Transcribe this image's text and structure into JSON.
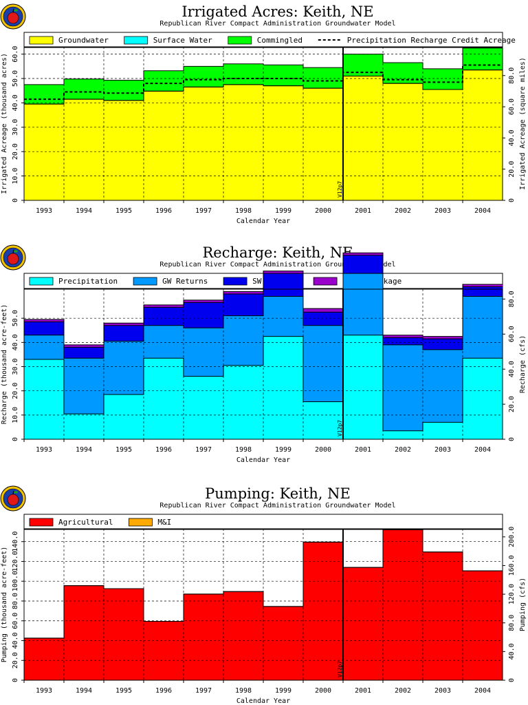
{
  "chart_data": [
    {
      "type": "area",
      "title": "Irrigated Acres: Keith, NE",
      "subtitle": "Republican River Compact Administration Groundwater Model",
      "xlabel": "Calendar Year",
      "ylabel": "Irrigated Acreage (thousand acres)",
      "ylabel_right": "Irrigated Acreage (square miles)",
      "categories": [
        "1993",
        "1994",
        "1995",
        "1996",
        "1997",
        "1998",
        "1999",
        "2000",
        "2001",
        "2002",
        "2003",
        "2004"
      ],
      "ylim": [
        0,
        63
      ],
      "yticks": [
        "0",
        "10.0",
        "20.0",
        "30.0",
        "40.0",
        "50.0",
        "60.0"
      ],
      "yticks_right": [
        "0",
        "20.0",
        "40.0",
        "60.0",
        "80.0"
      ],
      "yticks_right_values": [
        0,
        12.8,
        25.6,
        38.4,
        51.2
      ],
      "series": [
        {
          "name": "Groundwater",
          "color": "#ffff00",
          "values": [
            39.5,
            41.5,
            41.0,
            44.8,
            46.5,
            47.5,
            47.0,
            46.0,
            51.0,
            48.0,
            45.5,
            53.5
          ]
        },
        {
          "name": "Surface Water",
          "color": "#00ffff",
          "values": [
            0,
            0,
            0,
            0,
            0,
            0,
            0,
            0,
            0,
            0,
            0,
            0
          ]
        },
        {
          "name": "Commingled",
          "color": "#00ff00",
          "values": [
            8.0,
            8.3,
            8.3,
            8.4,
            8.5,
            8.5,
            8.6,
            8.5,
            9.0,
            8.5,
            8.5,
            9.0
          ]
        },
        {
          "name": "Precipitation Recharge Credit Acreage",
          "color": "#000000",
          "style": "dashed",
          "values": [
            41.5,
            44.5,
            44.0,
            48.0,
            49.5,
            50.0,
            50.0,
            49.0,
            52.5,
            49.5,
            48.5,
            55.5
          ]
        }
      ],
      "marker": {
        "label": "V12p7",
        "after": "2000"
      }
    },
    {
      "type": "area",
      "title": "Recharge: Keith, NE",
      "subtitle": "Republican River Compact Administration Groundwater Model",
      "xlabel": "Calendar Year",
      "ylabel": "Recharge (thousand acre-feet)",
      "ylabel_right": "Recharge (cfs)",
      "categories": [
        "1993",
        "1994",
        "1995",
        "1996",
        "1997",
        "1998",
        "1999",
        "2000",
        "2001",
        "2002",
        "2003",
        "2004"
      ],
      "ylim": [
        0,
        62
      ],
      "yticks": [
        "0",
        "10.0",
        "20.0",
        "30.0",
        "40.0",
        "50.0"
      ],
      "yticks_right": [
        "0",
        "20.0",
        "40.0",
        "60.0",
        "80.0"
      ],
      "yticks_right_values": [
        0,
        14.48,
        28.96,
        43.44,
        57.92
      ],
      "series": [
        {
          "name": "Precipitation",
          "color": "#00ffff",
          "values": [
            33.0,
            10.5,
            18.5,
            33.5,
            26.0,
            30.5,
            42.5,
            15.5,
            43.0,
            3.5,
            7.0,
            33.5
          ]
        },
        {
          "name": "GW Returns",
          "color": "#0099ff",
          "values": [
            10.0,
            23.0,
            22.0,
            13.5,
            20.0,
            20.5,
            16.5,
            31.5,
            25.5,
            35.5,
            30.0,
            25.5
          ]
        },
        {
          "name": "SW Returns",
          "color": "#0000ee",
          "values": [
            5.5,
            4.5,
            6.5,
            7.5,
            10.5,
            9.0,
            9.5,
            5.5,
            7.5,
            3.0,
            4.5,
            4.0
          ]
        },
        {
          "name": "Canal Leakage",
          "color": "#9900cc",
          "values": [
            1.0,
            1.0,
            1.0,
            1.0,
            1.0,
            1.0,
            1.0,
            1.5,
            1.0,
            1.0,
            1.0,
            1.0
          ]
        }
      ],
      "marker": {
        "label": "V12p7",
        "after": "2000"
      }
    },
    {
      "type": "area",
      "title": "Pumping: Keith, NE",
      "subtitle": "Republican River Compact Administration Groundwater Model",
      "xlabel": "Calendar Year",
      "ylabel": "Pumping (thousand acre-feet)",
      "ylabel_right": "Pumping (cfs)",
      "categories": [
        "1993",
        "1994",
        "1995",
        "1996",
        "1997",
        "1998",
        "1999",
        "2000",
        "2001",
        "2002",
        "2003",
        "2004"
      ],
      "ylim": [
        0,
        153
      ],
      "yticks": [
        "0",
        "20.0",
        "40.0",
        "60.0",
        "80.0",
        "100.0",
        "120.0",
        "140.0"
      ],
      "yticks_right": [
        "0",
        "40.0",
        "80.0",
        "120.0",
        "160.0",
        "200.0"
      ],
      "yticks_right_values": [
        0,
        28.96,
        57.92,
        86.88,
        115.84,
        144.8
      ],
      "series": [
        {
          "name": "Agricultural",
          "color": "#ff0000",
          "values": [
            42.5,
            95.5,
            92.5,
            59.5,
            87.0,
            89.5,
            74.5,
            139.5,
            114.0,
            152.0,
            129.5,
            110.5
          ]
        },
        {
          "name": "M&I",
          "color": "#ffaa00",
          "values": [
            0,
            0,
            0,
            0,
            0,
            0,
            0,
            0,
            0,
            0,
            0,
            0
          ]
        }
      ],
      "marker": {
        "label": "V12p7",
        "after": "2000"
      }
    }
  ]
}
